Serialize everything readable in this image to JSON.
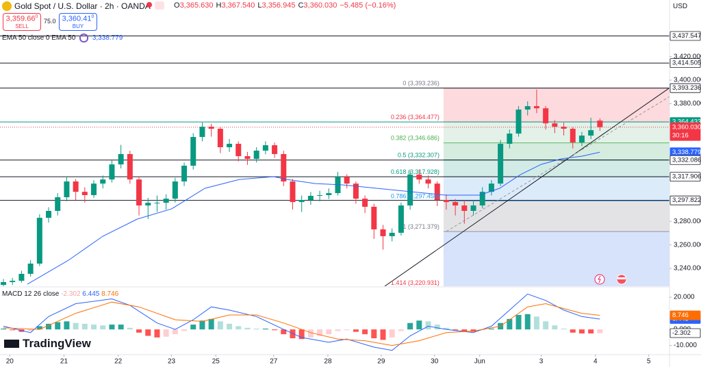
{
  "header": {
    "symbol": "Gold Spot / U.S. Dollar · 2h · OANDA",
    "ohlc": [
      "O",
      "3,365.630",
      "H",
      "3,367.540",
      "L",
      "3,356.945",
      "C",
      "3,360.030",
      "−5.485 (−0.16%)"
    ],
    "sell_price": "3,359.66",
    "sell_sup": "0",
    "sell_label": "SELL",
    "spread": "75.0",
    "buy_price": "3,360.41",
    "buy_sup": "0",
    "buy_label": "BUY",
    "indicator": "EMA 50 close 0 EMA 50",
    "indicator_value": "3,338.779",
    "currency": "USD"
  },
  "logo": "TradingView",
  "chart_data": [
    {
      "type": "candlestick",
      "up_color": "#089981",
      "down_color": "#f23645",
      "xlim": [
        -0.38,
        73.7
      ],
      "xticks": [
        {
          "value": 0.7,
          "label": "20"
        },
        {
          "value": 6.7,
          "label": "21"
        },
        {
          "value": 12.7,
          "label": "22"
        },
        {
          "value": 18.6,
          "label": "23"
        },
        {
          "value": 23.5,
          "label": "25"
        },
        {
          "value": 29.9,
          "label": "27"
        },
        {
          "value": 35.9,
          "label": "28"
        },
        {
          "value": 41.8,
          "label": "29"
        },
        {
          "value": 47.7,
          "label": "30"
        },
        {
          "value": 52.7,
          "label": "Jun"
        },
        {
          "value": 59.5,
          "label": "3"
        },
        {
          "value": 65.5,
          "label": "4"
        },
        {
          "value": 71.4,
          "label": "5"
        }
      ],
      "ylim": [
        3224.9,
        3468.1
      ],
      "yticks": [
        {
          "value": 3240,
          "label": "3,240.000"
        },
        {
          "value": 3260,
          "label": "3,260.000"
        },
        {
          "value": 3280,
          "label": "3,280.000"
        },
        {
          "value": 3380,
          "label": "3,380.000"
        },
        {
          "value": 3400,
          "label": "3,400.000"
        },
        {
          "value": 3420,
          "label": "3,420.000"
        }
      ],
      "ohlc": [
        [
          3226.0,
          3231.0,
          3224.0,
          3228.4
        ],
        [
          3228.4,
          3232.0,
          3226.0,
          3229.5
        ],
        [
          3229.5,
          3238.0,
          3228.0,
          3235.4
        ],
        [
          3235.4,
          3247.0,
          3233.0,
          3244.1
        ],
        [
          3244.1,
          3286.0,
          3242.0,
          3283.0
        ],
        [
          3283.0,
          3292.0,
          3279.0,
          3288.9
        ],
        [
          3288.9,
          3304.0,
          3285.0,
          3300.5
        ],
        [
          3300.5,
          3318.0,
          3297.0,
          3313.9
        ],
        [
          3313.9,
          3316.0,
          3298.0,
          3305.1
        ],
        [
          3305.1,
          3309.0,
          3296.0,
          3302.3
        ],
        [
          3302.3,
          3315.0,
          3300.0,
          3312.1
        ],
        [
          3312.1,
          3319.0,
          3308.0,
          3315.6
        ],
        [
          3315.6,
          3332.0,
          3313.0,
          3328.4
        ],
        [
          3328.4,
          3345.0,
          3325.0,
          3337.2
        ],
        [
          3337.2,
          3340.0,
          3312.0,
          3315.6
        ],
        [
          3315.6,
          3318.0,
          3285.0,
          3293.5
        ],
        [
          3293.5,
          3300.0,
          3282.0,
          3295.8
        ],
        [
          3295.8,
          3302.0,
          3288.0,
          3295.8
        ],
        [
          3295.8,
          3303.0,
          3290.0,
          3299.3
        ],
        [
          3299.3,
          3317.0,
          3296.0,
          3313.9
        ],
        [
          3313.9,
          3330.0,
          3310.0,
          3327.3
        ],
        [
          3327.3,
          3355.0,
          3324.0,
          3351.7
        ],
        [
          3351.7,
          3364.0,
          3348.0,
          3360.4
        ],
        [
          3360.4,
          3363.0,
          3352.0,
          3358.7
        ],
        [
          3358.7,
          3360.0,
          3338.0,
          3343.0
        ],
        [
          3343.0,
          3350.0,
          3339.0,
          3345.9
        ],
        [
          3345.9,
          3348.0,
          3331.0,
          3335.4
        ],
        [
          3335.4,
          3339.0,
          3328.0,
          3333.1
        ],
        [
          3333.1,
          3343.0,
          3330.0,
          3340.1
        ],
        [
          3340.1,
          3348.0,
          3337.0,
          3344.7
        ],
        [
          3344.7,
          3347.0,
          3334.0,
          3337.2
        ],
        [
          3337.2,
          3340.0,
          3310.0,
          3313.9
        ],
        [
          3313.9,
          3316.0,
          3290.0,
          3296.4
        ],
        [
          3296.4,
          3302.0,
          3288.0,
          3298.2
        ],
        [
          3298.2,
          3305.0,
          3294.0,
          3301.7
        ],
        [
          3301.7,
          3306.0,
          3297.0,
          3302.3
        ],
        [
          3302.3,
          3308.0,
          3299.0,
          3304.0
        ],
        [
          3304.0,
          3322.0,
          3302.0,
          3317.9
        ],
        [
          3317.9,
          3320.0,
          3308.0,
          3312.1
        ],
        [
          3312.1,
          3314.0,
          3295.0,
          3299.3
        ],
        [
          3299.3,
          3302.0,
          3287.0,
          3292.4
        ],
        [
          3292.4,
          3295.0,
          3265.0,
          3273.2
        ],
        [
          3273.2,
          3277.0,
          3256.0,
          3267.4
        ],
        [
          3267.4,
          3274.0,
          3263.0,
          3270.3
        ],
        [
          3270.3,
          3296.0,
          3268.0,
          3293.5
        ],
        [
          3293.5,
          3323.0,
          3290.0,
          3319.7
        ],
        [
          3319.7,
          3324.0,
          3312.0,
          3315.6
        ],
        [
          3315.6,
          3319.0,
          3308.0,
          3312.1
        ],
        [
          3312.1,
          3314.0,
          3293.0,
          3298.2
        ],
        [
          3298.2,
          3303.0,
          3290.0,
          3296.4
        ],
        [
          3296.4,
          3299.0,
          3285.0,
          3293.5
        ],
        [
          3293.5,
          3298.0,
          3278.0,
          3288.9
        ],
        [
          3288.9,
          3298.0,
          3285.0,
          3293.5
        ],
        [
          3293.5,
          3309.0,
          3291.0,
          3305.1
        ],
        [
          3305.1,
          3315.0,
          3302.0,
          3312.1
        ],
        [
          3312.1,
          3349.0,
          3310.0,
          3345.9
        ],
        [
          3345.9,
          3358.0,
          3342.0,
          3354.6
        ],
        [
          3354.6,
          3378.0,
          3352.0,
          3375.0
        ],
        [
          3375.0,
          3382.0,
          3370.0,
          3377.9
        ],
        [
          3377.9,
          3392.0,
          3372.0,
          3376.1
        ],
        [
          3376.1,
          3378.0,
          3358.0,
          3363.3
        ],
        [
          3363.3,
          3366.0,
          3355.0,
          3360.4
        ],
        [
          3360.4,
          3364.0,
          3353.0,
          3358.7
        ],
        [
          3358.7,
          3360.0,
          3342.0,
          3347.1
        ],
        [
          3347.1,
          3356.0,
          3344.0,
          3352.9
        ],
        [
          3352.9,
          3368.0,
          3350.0,
          3357.5
        ],
        [
          3365.63,
          3367.54,
          3356.945,
          3360.03
        ]
      ],
      "series": [
        {
          "color": "#2962ff",
          "x": [
            2.65,
            7.2,
            11.0,
            14.8,
            18.6,
            22.3,
            26.1,
            29.9,
            31.4,
            34.5,
            37.5,
            41.3,
            45.1,
            48.9,
            52.7,
            54.9,
            57.2,
            59.5,
            61.7,
            64.0,
            66.0
          ],
          "values": [
            3226.6,
            3247.0,
            3267.4,
            3281.9,
            3290.6,
            3308.1,
            3315.6,
            3318.0,
            3315.6,
            3312.1,
            3311.0,
            3308.1,
            3305.2,
            3302.3,
            3302.3,
            3308.1,
            3319.7,
            3328.4,
            3333.1,
            3335.4,
            3338.779
          ]
        }
      ],
      "price_lines": [
        {
          "value": 3437.547,
          "label": "3,437.547",
          "color": "#131722",
          "tag": "outline"
        },
        {
          "value": 3414.505,
          "label": "3,414.505",
          "color": "#131722",
          "tag": "outline"
        },
        {
          "value": 3393.236,
          "label": "3,393.236",
          "color": "#131722",
          "tag": "outline"
        },
        {
          "value": 3364.433,
          "label": "3,364.433",
          "color": "#089981",
          "tag": "filled"
        },
        {
          "value": 3360.03,
          "label": "3,360.030",
          "color": "#f23645",
          "tag": "filled",
          "style": "dotted",
          "countdown": "30:16"
        },
        {
          "value": 3338.779,
          "label": "3,338.779",
          "color": "#2962ff",
          "tag": "filled",
          "style": "none"
        },
        {
          "value": 3332.086,
          "label": "3,332.086",
          "color": "#131722",
          "tag": "outline"
        },
        {
          "value": 3317.906,
          "label": "3,317.906",
          "color": "#131722",
          "tag": "outline"
        },
        {
          "value": 3297.822,
          "label": "3,297.822",
          "color": "#131722",
          "tag": "outline"
        }
      ],
      "fib": {
        "from_x": 48.7,
        "levels": [
          {
            "value": 3393.236,
            "label": "0 (3,393.236)",
            "color": "#787b86",
            "fill": "#fcdadd"
          },
          {
            "value": 3364.477,
            "label": "0.236 (3,364.477)",
            "color": "#f23645",
            "fill": "#e3f1e9"
          },
          {
            "value": 3346.686,
            "label": "0.382 (3,346.686)",
            "color": "#4caf50",
            "fill": "#d6ecdf"
          },
          {
            "value": 3332.307,
            "label": "0.5 (3,332.307)",
            "color": "#089981",
            "fill": "#d2ebe6"
          },
          {
            "value": 3317.928,
            "label": "0.618 (3,317.928)",
            "color": "#089981",
            "fill": "#dcebfa"
          },
          {
            "value": 3297.456,
            "label": "0.786 (3,297.456)",
            "color": "#2196f3",
            "fill": "#e3e3e5"
          },
          {
            "value": 3271.379,
            "label": "1 (3,271.379)",
            "color": "#787b86",
            "fill": "#d7e2fb"
          },
          {
            "value": 3220.931,
            "label": "1.414 (3,220.931)",
            "color": "#f23645"
          }
        ]
      }
    },
    {
      "type": "macd",
      "title": "MACD 12 26 close",
      "ylim": [
        -15.7,
        26
      ],
      "yticks": [
        {
          "value": 20,
          "label": "20.000"
        },
        {
          "value": 0,
          "label": "0.000"
        },
        {
          "value": -10,
          "label": "-10.000"
        }
      ],
      "histogram": {
        "values": [
          0.5,
          -0.5,
          -1.5,
          -1.0,
          2.0,
          3.5,
          4.5,
          5.0,
          4.0,
          3.5,
          3.0,
          2.5,
          3.0,
          3.0,
          1.0,
          -2.0,
          -4.0,
          -5.0,
          -4.5,
          -3.0,
          -1.0,
          3.0,
          5.5,
          6.5,
          5.0,
          3.5,
          2.0,
          1.0,
          0.5,
          0.5,
          -0.5,
          -3.0,
          -5.5,
          -6.0,
          -5.0,
          -4.0,
          -3.0,
          -1.0,
          -0.5,
          -1.5,
          -3.0,
          -5.5,
          -6.5,
          -5.0,
          -1.0,
          4.0,
          5.5,
          5.0,
          3.0,
          1.0,
          -0.5,
          -1.5,
          -1.5,
          -0.5,
          0.5,
          4.0,
          6.5,
          9.0,
          9.5,
          8.0,
          5.0,
          2.5,
          0.5,
          -2.0,
          -2.5,
          -2.5,
          -2.302
        ],
        "last_label": "-2.302",
        "colors": [
          "#26a69a",
          "#b2dfdb",
          "#ff5252",
          "#ffcdd2"
        ]
      },
      "series": [
        {
          "color": "#2962ff",
          "x": [
            0,
            3,
            5,
            8,
            12,
            14,
            17,
            19,
            21,
            23,
            25,
            28,
            31,
            33,
            36,
            38,
            41,
            43,
            45,
            47,
            49,
            52,
            54,
            56,
            58,
            60,
            62,
            64,
            66
          ],
          "values": [
            2,
            -2,
            8,
            16,
            19,
            15,
            4,
            0,
            6,
            14,
            12,
            8,
            0,
            -5,
            -8,
            -6,
            -11,
            -13,
            -4,
            2,
            0,
            -2,
            2,
            12,
            22,
            18,
            12,
            8,
            6.445
          ],
          "last_label": "6.445"
        },
        {
          "color": "#ff6d00",
          "x": [
            0,
            4,
            8,
            12,
            15,
            19,
            22,
            25,
            28,
            31,
            34,
            37,
            40,
            43,
            46,
            49,
            52,
            55,
            58,
            60,
            62,
            64,
            66
          ],
          "values": [
            1,
            0,
            10,
            17,
            14,
            6,
            5,
            9,
            9,
            4,
            -2,
            -6,
            -7,
            -10,
            -7,
            -2,
            -1,
            2,
            14,
            16,
            13,
            10,
            8.746
          ],
          "last_label": "8.746"
        }
      ]
    }
  ]
}
